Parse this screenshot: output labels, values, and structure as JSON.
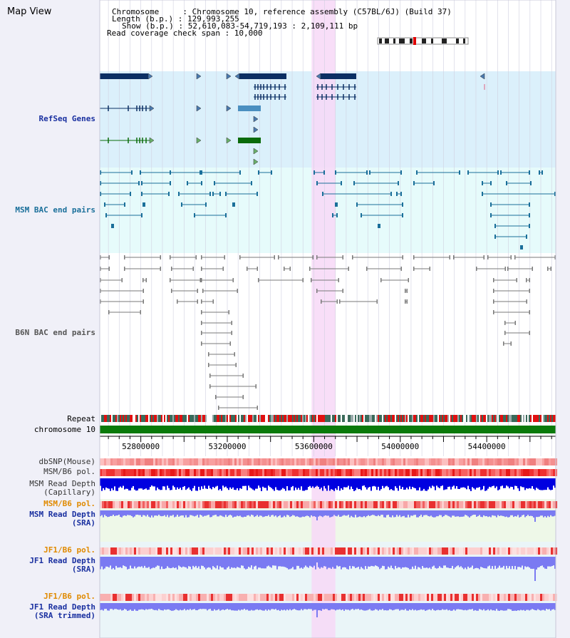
{
  "view": {
    "title": "Map View",
    "info_lines": [
      "Chromosome     : Chromosome 10, reference assembly (C57BL/6J) (Build 37)",
      "Length (b.p.) : 129,993,255",
      "Show (b.p.) : 52,610,083-54,719,193 : 2,109,111 bp",
      "Read coverage check span : 10,000"
    ]
  },
  "tracks": {
    "refseq": "RefSeq Genes",
    "msm_bac": "MSM BAC end pairs",
    "b6n_bac": "B6N BAC end pairs",
    "repeat": "Repeat",
    "chromosome": "chromosome 10",
    "dbsnp": "dbSNP(Mouse)",
    "msm_b6_pol": "MSM/B6 pol.",
    "msm_depth_cap": [
      "MSM Read Depth",
      "(Capillary)"
    ],
    "msm_b6_pol2": "MSM/B6 pol.",
    "msm_depth_sra": [
      "MSM Read Depth",
      "(SRA)"
    ],
    "jf1_b6_pol": "JF1/B6 pol.",
    "jf1_depth_sra": [
      "JF1 Read Depth",
      "(SRA)"
    ],
    "jf1_b6_pol2": "JF1/B6 pol.",
    "jf1_depth_trim": [
      "JF1 Read Depth",
      "(SRA trimmed)"
    ]
  },
  "axis": {
    "start_bp": 52610083,
    "end_bp": 54719193,
    "ticks": [
      "52800000",
      "53200000",
      "53600000",
      "54000000",
      "54400000"
    ]
  },
  "highlight": {
    "start_bp": 53590000,
    "end_bp": 53700000
  },
  "colors": {
    "refseq_bg": "#dbf0fb",
    "bac_bg": "#e6fbfb",
    "highlight": "#f7d8f7",
    "gene_dark": "#0b2f63",
    "gene_mid": "#4b8fc0",
    "gene_green": "#0a6b0a",
    "msm_pair": "#1a6f9a",
    "b6n_pair": "#7a7a7a",
    "chromosome_bar": "#0a7a0a",
    "snp_red": "#ff4040",
    "depth_blue": "#0000e0",
    "depth_light": "#7a7af2",
    "label_blue": "#1a30a0",
    "label_orange": "#e08a00"
  }
}
